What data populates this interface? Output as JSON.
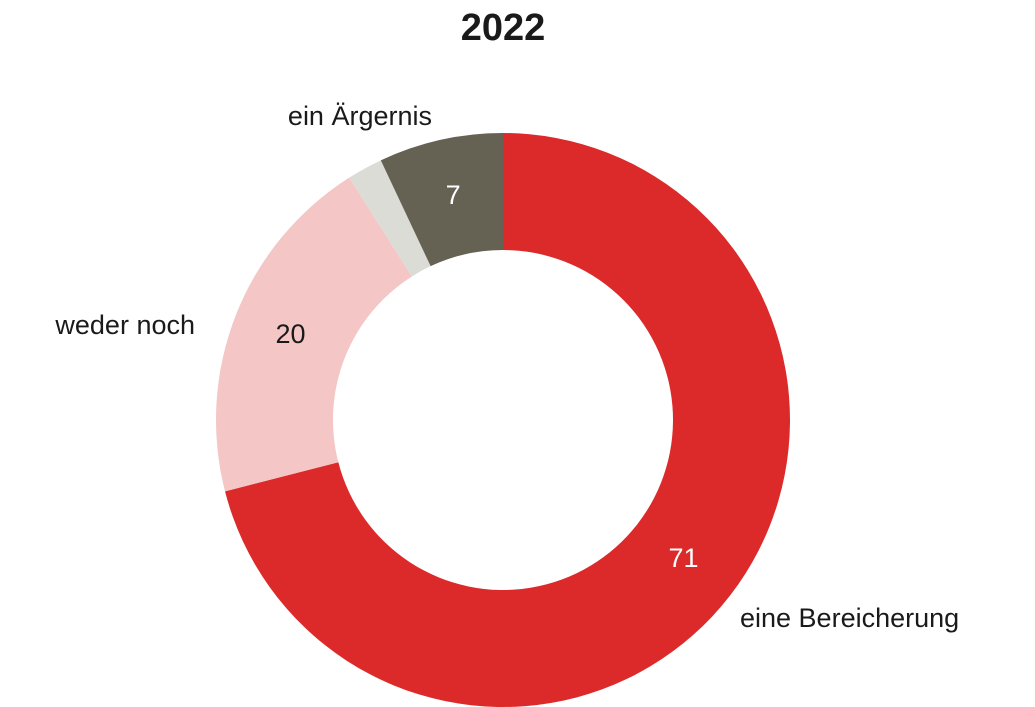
{
  "chart_data": {
    "type": "donut",
    "title": "2022",
    "categories": [
      "eine Bereicherung",
      "weder noch",
      null,
      "ein Ärgernis"
    ],
    "values": [
      71,
      20,
      2,
      7
    ],
    "colors": [
      "#dc2a2b",
      "#f4c6c6",
      "#dcdcd7",
      "#656253"
    ]
  }
}
